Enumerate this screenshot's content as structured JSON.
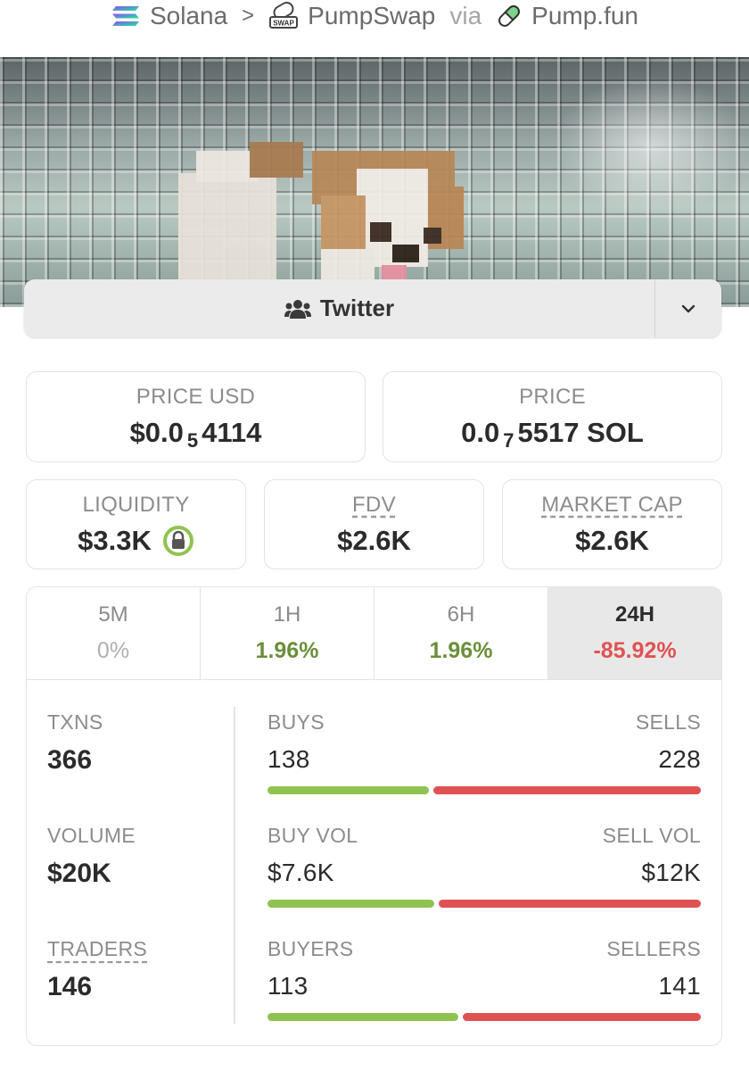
{
  "breadcrumb": {
    "chain": "Solana",
    "dex": "PumpSwap",
    "via": "via",
    "launchpad": "Pump.fun"
  },
  "icons": {
    "chain": "solana-logo-icon",
    "dex": "pumpswap-logo-icon",
    "launchpad": "pill-icon",
    "twitter": "users-icon",
    "dropdown": "chevron-down-icon",
    "liquidity_lock": "lock-icon"
  },
  "socials": {
    "twitter_label": "Twitter"
  },
  "price": {
    "usd_label": "PRICE USD",
    "usd_prefix": "$0.0",
    "usd_zeros": "5",
    "usd_digits": "4114",
    "native_label": "PRICE",
    "native_prefix": "0.0",
    "native_zeros": "7",
    "native_digits": "5517 SOL"
  },
  "metrics": {
    "liquidity_label": "LIQUIDITY",
    "liquidity_value": "$3.3K",
    "fdv_label": "FDV",
    "fdv_value": "$2.6K",
    "mcap_label": "MARKET CAP",
    "mcap_value": "$2.6K"
  },
  "timeframes": [
    {
      "label": "5M",
      "change": "0%"
    },
    {
      "label": "1H",
      "change": "1.96%"
    },
    {
      "label": "6H",
      "change": "1.96%"
    },
    {
      "label": "24H",
      "change": "-85.92%"
    }
  ],
  "txns": {
    "label": "TXNS",
    "value": "366",
    "buys_label": "BUYS",
    "buys": "138",
    "sells_label": "SELLS",
    "sells": "228",
    "buy_count": 138,
    "sell_count": 228
  },
  "volume": {
    "label": "VOLUME",
    "value": "$20K",
    "buy_label": "BUY VOL",
    "buy": "$7.6K",
    "sell_label": "SELL VOL",
    "sell": "$12K",
    "buy_amount": 7.6,
    "sell_amount": 12
  },
  "traders": {
    "label": "TRADERS",
    "value": "146",
    "buyers_label": "BUYERS",
    "buyers": "113",
    "sellers_label": "SELLERS",
    "sellers": "141",
    "buyer_count": 113,
    "seller_count": 141
  },
  "colors": {
    "positive": "#6b8f3a",
    "negative": "#e05252",
    "buy_bar": "#8fc34f",
    "sell_bar": "#e05252",
    "lock_ring": "#8fc34f"
  }
}
